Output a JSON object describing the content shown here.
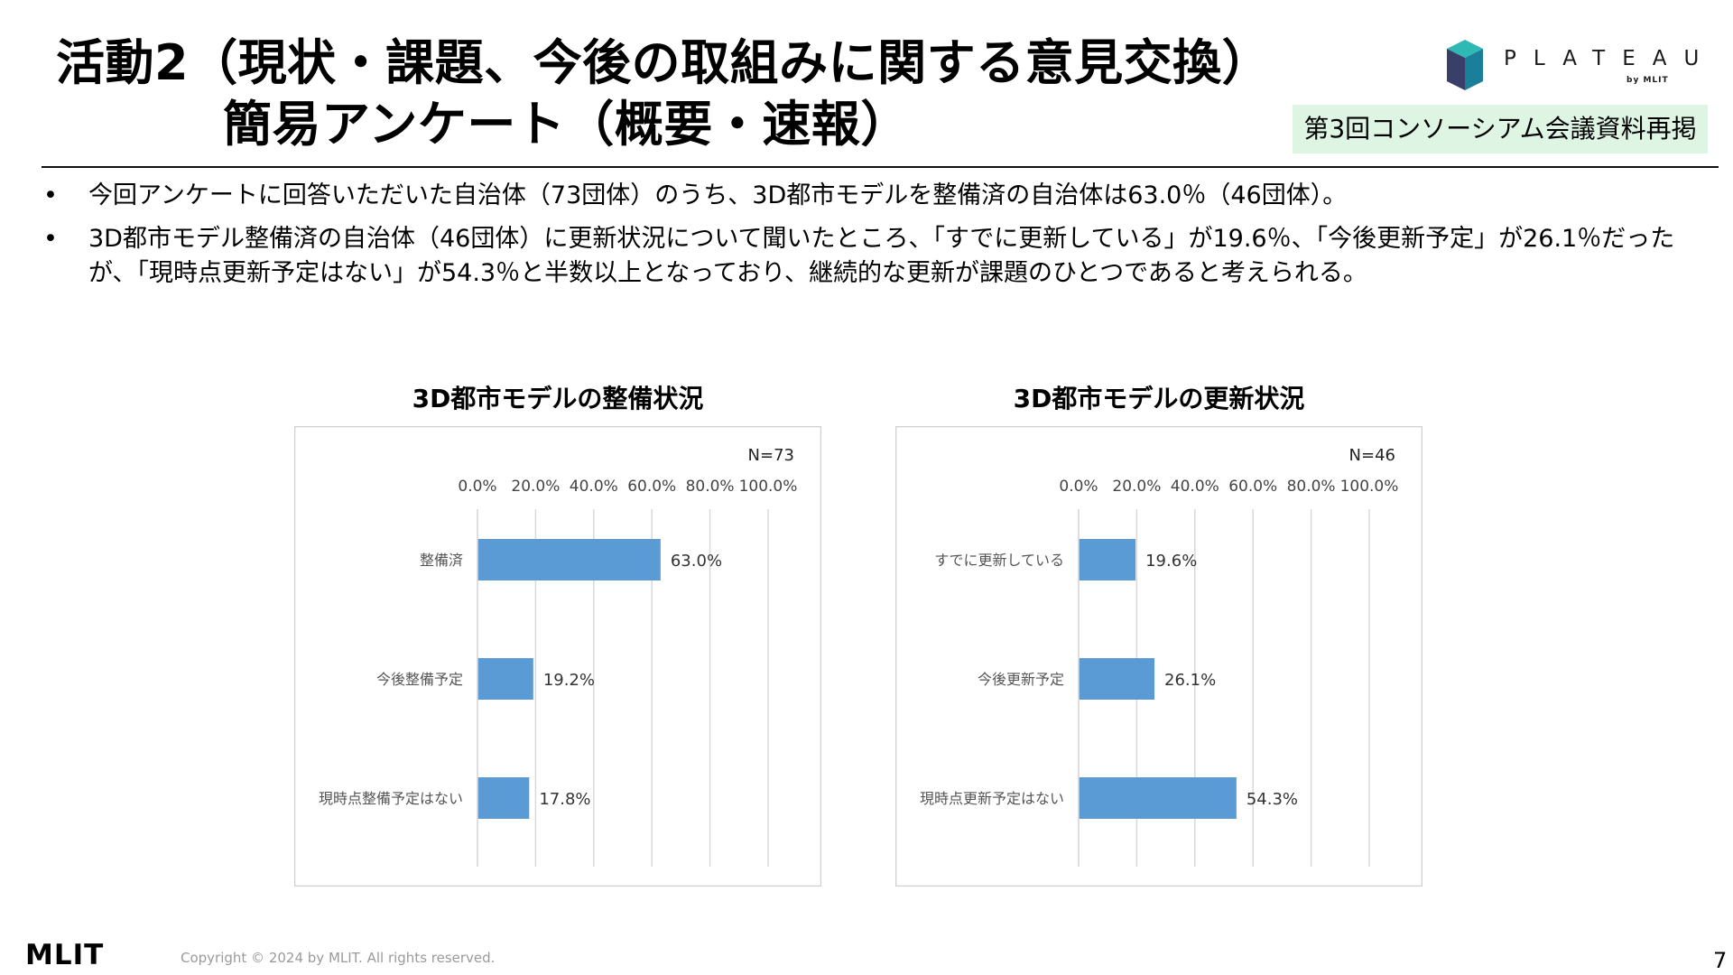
{
  "header": {
    "title_line1": "活動2（現状・課題、今後の取組みに関する意見交換）",
    "title_line2": "簡易アンケート（概要・速報）",
    "brand": {
      "name": "PLATEAU",
      "sub": "by MLIT",
      "colors": [
        "#2fb9b4",
        "#1b7f9a",
        "#3a3f6a"
      ]
    },
    "badge": "第3回コンソーシアム会議資料再掲"
  },
  "bullets": [
    "今回アンケートに回答いただいた自治体（73団体）のうち、3D都市モデルを整備済の自治体は63.0％（46団体）。",
    "3D都市モデル整備済の自治体（46団体）に更新状況について聞いたところ、「すでに更新している」が19.6％、「今後更新予定」が26.1％だったが、「現時点更新予定はない」が54.3％と半数以上となっており、継続的な更新が課題のひとつであると考えられる。"
  ],
  "chart_data": [
    {
      "type": "bar",
      "orientation": "horizontal",
      "title": "3D都市モデルの整備状況",
      "annotation": "N=73",
      "categories": [
        "整備済",
        "今後整備予定",
        "現時点整備予定はない"
      ],
      "values": [
        63.0,
        19.2,
        17.8
      ],
      "value_labels": [
        "63.0%",
        "19.2%",
        "17.8%"
      ],
      "xlim": [
        0,
        100
      ],
      "tick_labels": [
        "0.0%",
        "20.0%",
        "40.0%",
        "60.0%",
        "80.0%",
        "100.0%"
      ],
      "axis_position": "top",
      "grid": true,
      "bar_color": "#5b9bd5"
    },
    {
      "type": "bar",
      "orientation": "horizontal",
      "title": "3D都市モデルの更新状況",
      "annotation": "N=46",
      "categories": [
        "すでに更新している",
        "今後更新予定",
        "現時点更新予定はない"
      ],
      "values": [
        19.6,
        26.1,
        54.3
      ],
      "value_labels": [
        "19.6%",
        "26.1%",
        "54.3%"
      ],
      "xlim": [
        0,
        100
      ],
      "tick_labels": [
        "0.0%",
        "20.0%",
        "40.0%",
        "60.0%",
        "80.0%",
        "100.0%"
      ],
      "axis_position": "top",
      "grid": true,
      "bar_color": "#5b9bd5"
    }
  ],
  "footer": {
    "logo_text": "MLIT",
    "copyright": "Copyright © 2024 by MLIT. All rights reserved.",
    "page_number": "7"
  }
}
